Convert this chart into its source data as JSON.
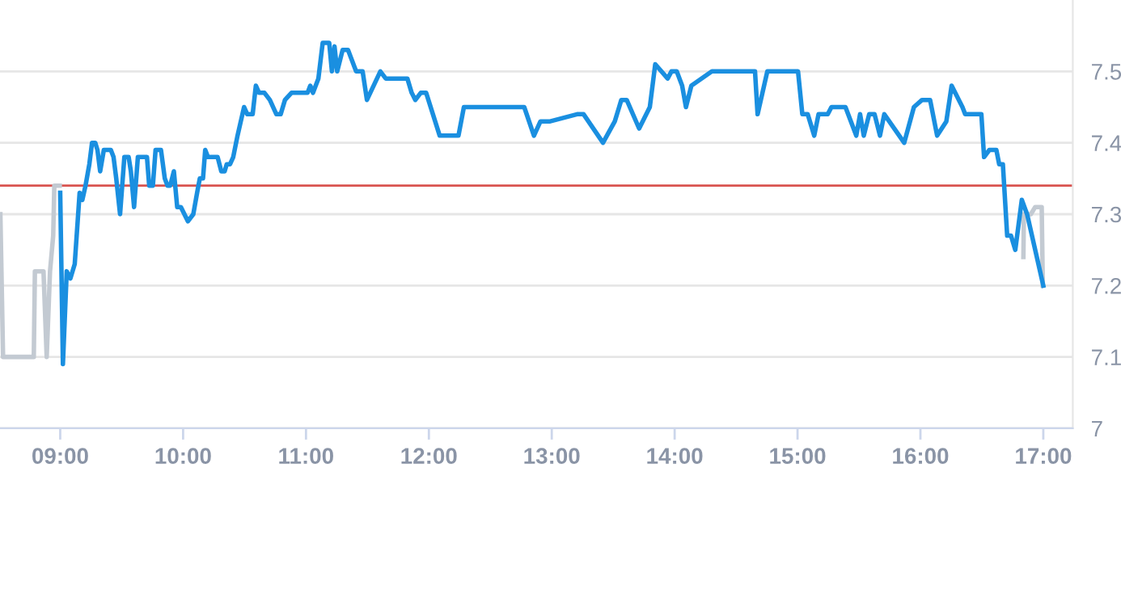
{
  "chart_data": {
    "type": "line",
    "xlim": [
      8.51,
      17.24
    ],
    "xticks": [
      {
        "value": 9,
        "label": "09:00"
      },
      {
        "value": 10,
        "label": "10:00"
      },
      {
        "value": 11,
        "label": "11:00"
      },
      {
        "value": 12,
        "label": "12:00"
      },
      {
        "value": 13,
        "label": "13:00"
      },
      {
        "value": 14,
        "label": "14:00"
      },
      {
        "value": 15,
        "label": "15:00"
      },
      {
        "value": 16,
        "label": "16:00"
      },
      {
        "value": 17,
        "label": "17:00"
      }
    ],
    "ylim": [
      7,
      7.6
    ],
    "yticks": [
      7,
      7.1,
      7.2,
      7.3,
      7.4,
      7.5
    ],
    "grid": "y",
    "ref_lines": [
      {
        "axis": "y",
        "value": 7.34,
        "color": "#d9534f"
      }
    ],
    "series": [
      {
        "color": "#c3cad2",
        "x": [
          8.513,
          8.535,
          8.785,
          8.794,
          8.864,
          8.89,
          8.917,
          8.943,
          8.952,
          8.996
        ],
        "values": [
          7.3,
          7.1,
          7.1,
          7.22,
          7.22,
          7.1,
          7.22,
          7.27,
          7.34,
          7.34
        ]
      },
      {
        "color": "#c3cad2",
        "x": [
          16.838,
          16.842,
          16.899,
          16.934,
          16.987,
          16.996
        ],
        "values": [
          7.24,
          7.3,
          7.3,
          7.31,
          7.31,
          7.2
        ]
      },
      {
        "color": "#1a8fe0",
        "x": [
          9.0,
          9.022,
          9.053,
          9.083,
          9.118,
          9.158,
          9.18,
          9.206,
          9.237,
          9.259,
          9.285,
          9.303,
          9.325,
          9.355,
          9.412,
          9.434,
          9.456,
          9.487,
          9.522,
          9.557,
          9.575,
          9.601,
          9.632,
          9.706,
          9.724,
          9.754,
          9.776,
          9.82,
          9.851,
          9.873,
          9.895,
          9.925,
          9.952,
          9.982,
          10.039,
          10.083,
          10.114,
          10.136,
          10.162,
          10.18,
          10.202,
          10.281,
          10.311,
          10.338,
          10.355,
          10.382,
          10.408,
          10.443,
          10.496,
          10.522,
          10.566,
          10.592,
          10.618,
          10.662,
          10.706,
          10.759,
          10.794,
          10.829,
          10.882,
          11.013,
          11.035,
          11.057,
          11.101,
          11.136,
          11.189,
          11.211,
          11.232,
          11.254,
          11.298,
          11.342,
          11.408,
          11.461,
          11.496,
          11.605,
          11.649,
          11.825,
          11.86,
          11.89,
          11.934,
          11.978,
          12.088,
          12.241,
          12.285,
          12.776,
          12.855,
          12.908,
          12.987,
          13.206,
          13.259,
          13.417,
          13.513,
          13.566,
          13.61,
          13.711,
          13.798,
          13.842,
          13.943,
          13.974,
          14.017,
          14.061,
          14.092,
          14.136,
          14.303,
          14.654,
          14.675,
          14.754,
          15.004,
          15.039,
          15.083,
          15.136,
          15.171,
          15.246,
          15.276,
          15.39,
          15.478,
          15.509,
          15.539,
          15.583,
          15.627,
          15.671,
          15.706,
          15.868,
          15.947,
          16.013,
          16.079,
          16.136,
          16.211,
          16.254,
          16.342,
          16.364,
          16.496,
          16.518,
          16.561,
          16.618,
          16.641,
          16.671,
          16.706,
          16.737,
          16.772,
          16.825,
          16.868,
          17.0
        ],
        "values": [
          7.33,
          7.09,
          7.22,
          7.21,
          7.23,
          7.33,
          7.32,
          7.34,
          7.37,
          7.4,
          7.4,
          7.39,
          7.36,
          7.39,
          7.39,
          7.38,
          7.35,
          7.3,
          7.38,
          7.38,
          7.36,
          7.31,
          7.38,
          7.38,
          7.34,
          7.34,
          7.39,
          7.39,
          7.35,
          7.34,
          7.34,
          7.36,
          7.31,
          7.31,
          7.29,
          7.3,
          7.33,
          7.35,
          7.35,
          7.39,
          7.38,
          7.38,
          7.36,
          7.36,
          7.37,
          7.37,
          7.38,
          7.41,
          7.45,
          7.44,
          7.44,
          7.48,
          7.47,
          7.47,
          7.46,
          7.44,
          7.44,
          7.46,
          7.47,
          7.47,
          7.48,
          7.47,
          7.49,
          7.54,
          7.54,
          7.5,
          7.535,
          7.5,
          7.53,
          7.53,
          7.5,
          7.5,
          7.46,
          7.5,
          7.49,
          7.49,
          7.47,
          7.46,
          7.47,
          7.47,
          7.41,
          7.41,
          7.45,
          7.45,
          7.41,
          7.43,
          7.43,
          7.44,
          7.44,
          7.4,
          7.43,
          7.46,
          7.46,
          7.42,
          7.45,
          7.51,
          7.49,
          7.5,
          7.5,
          7.48,
          7.45,
          7.48,
          7.5,
          7.5,
          7.44,
          7.5,
          7.5,
          7.44,
          7.44,
          7.41,
          7.44,
          7.44,
          7.45,
          7.45,
          7.41,
          7.44,
          7.41,
          7.44,
          7.44,
          7.41,
          7.44,
          7.4,
          7.45,
          7.46,
          7.46,
          7.41,
          7.43,
          7.48,
          7.45,
          7.44,
          7.44,
          7.38,
          7.39,
          7.39,
          7.37,
          7.37,
          7.27,
          7.27,
          7.25,
          7.32,
          7.3,
          7.2
        ]
      }
    ]
  }
}
